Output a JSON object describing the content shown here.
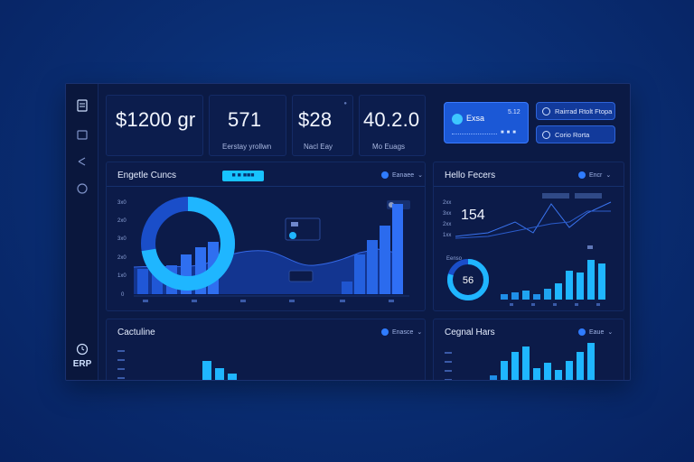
{
  "sidebar": {
    "icons": [
      "document-icon",
      "folder-icon",
      "share-icon",
      "globe-icon",
      "clock-icon"
    ],
    "brand": "ERP"
  },
  "stats": [
    {
      "value": "$1200 gr",
      "label": ""
    },
    {
      "value": "571",
      "label": "Eerstay yrollwn"
    },
    {
      "value": "$28",
      "label": "Nacl Eay"
    },
    {
      "value": "40.2.0",
      "label": "Mo Euags"
    }
  ],
  "top_right": {
    "card_label": "Exsa",
    "card_value": "5.12",
    "pill1": "Rairrad Rtolt Ftopa",
    "pill2": "Corio Rorta"
  },
  "main_panel": {
    "title": "Engetle Cuncs",
    "badge": "■ ■ ■■■",
    "dropdown": "Eanaee",
    "y_ticks": [
      "3x0",
      "2x0",
      "3x0",
      "2x0",
      "1x0",
      "0"
    ],
    "legend_chip": "■■■"
  },
  "right_panel": {
    "title": "Hello Fecers",
    "dropdown": "Encr",
    "value": "154",
    "donut_value": "56",
    "y_ticks": [
      "2xx",
      "3xx",
      "2xx",
      "1xx"
    ],
    "legend": "Eenso"
  },
  "bottom_left": {
    "title": "Cactuline",
    "dropdown": "Enasce"
  },
  "bottom_right": {
    "title": "Cegnal Hars",
    "dropdown": "Eaue"
  },
  "colors": {
    "accent": "#1ab8ff",
    "bar": "#2f6fe8",
    "bar_bright": "#1fb6ff",
    "panel": "#0c1b49"
  }
}
